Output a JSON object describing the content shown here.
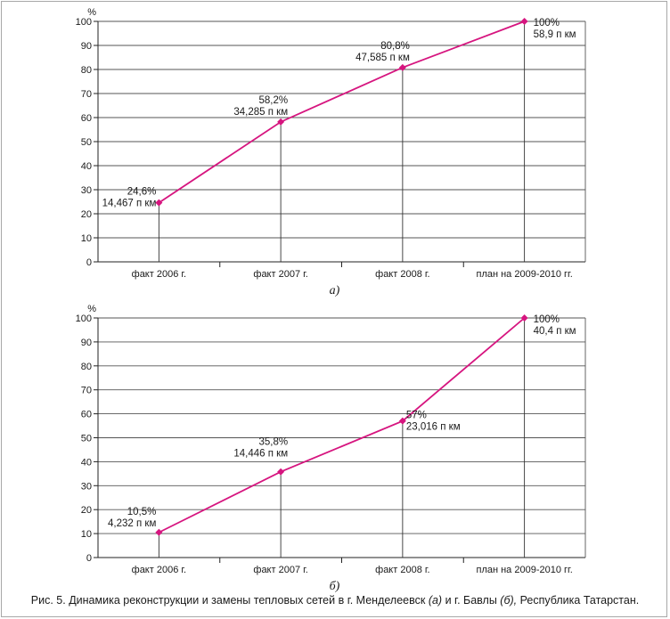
{
  "chart_data": [
    {
      "type": "line",
      "subtitle": "а)",
      "ylabel": "%",
      "ylim": [
        0,
        100
      ],
      "yticks": [
        "0",
        "10",
        "20",
        "30",
        "40",
        "50",
        "60",
        "70",
        "80",
        "90",
        "100"
      ],
      "categories": [
        "факт 2006 г.",
        "факт 2007 г.",
        "факт 2008 г.",
        "план на 2009-2010 гг."
      ],
      "values": [
        24.6,
        58.2,
        80.8,
        100
      ],
      "data_labels": [
        [
          "24,6%",
          "14,467 п км"
        ],
        [
          "58,2%",
          "34,285 п км"
        ],
        [
          "80,8%",
          "47,585 п км"
        ],
        [
          "100%",
          "58,9 п км"
        ]
      ],
      "grid": "horizontal",
      "line_color": "#d6157f"
    },
    {
      "type": "line",
      "subtitle": "б)",
      "ylabel": "%",
      "ylim": [
        0,
        100
      ],
      "yticks": [
        "0",
        "10",
        "20",
        "30",
        "40",
        "50",
        "60",
        "70",
        "80",
        "90",
        "100"
      ],
      "categories": [
        "факт 2006 г.",
        "факт 2007 г.",
        "факт 2008 г.",
        "план на 2009-2010 гг."
      ],
      "values": [
        10.5,
        35.8,
        57,
        100
      ],
      "data_labels": [
        [
          "10,5%",
          "4,232 п км"
        ],
        [
          "35,8%",
          "14,446 п км"
        ],
        [
          "57%",
          "23,016 п км"
        ],
        [
          "100%",
          "40,4 п км"
        ]
      ],
      "grid": "horizontal",
      "line_color": "#d6157f"
    }
  ],
  "caption": {
    "prefix": "Рис. 5. Динамика реконструкции и замены тепловых сетей в г. Менделеевск",
    "a": "(а)",
    "middle": "и г. Бавлы",
    "b": "(б),",
    "suffix": "Республика Татарстан."
  },
  "colors": {
    "grid": "#555555",
    "axis": "#222222",
    "frame": "#a8a8a8"
  }
}
